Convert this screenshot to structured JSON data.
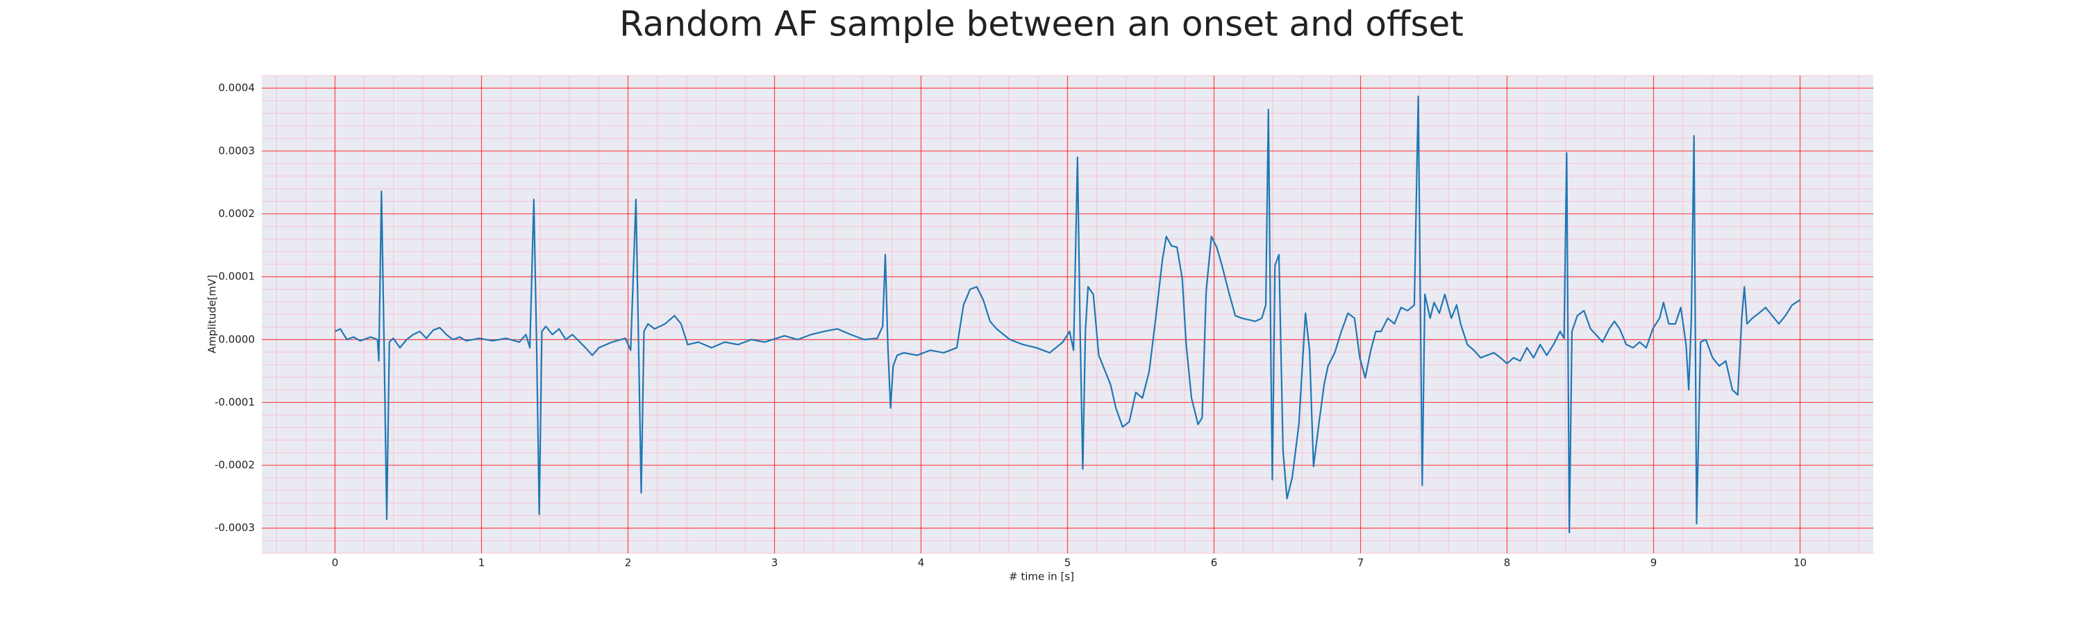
{
  "chart_data": {
    "type": "line",
    "title": "Random AF sample between an onset and offset",
    "xlabel": "# time in [s]",
    "ylabel": "Amplitude[mV]",
    "xlim": [
      -0.5,
      10.5
    ],
    "xticks": [
      0,
      1,
      2,
      3,
      4,
      5,
      6,
      7,
      8,
      9,
      10
    ],
    "ylim": [
      -0.00034,
      0.00042
    ],
    "yticks": [
      -0.0003,
      -0.0002,
      -0.0001,
      {
        "value": 0,
        "label": "0.0000"
      },
      0.0001,
      0.0002,
      0.0003,
      0.0004
    ],
    "grid": true,
    "grid_color": "#ff0000",
    "minor_grid_color": "#ffb0c8",
    "minor_divisions": 5,
    "background": "#eaeaf2",
    "series": [
      {
        "color": "#1f77b4",
        "x": [
          0,
          0.036,
          0.081,
          0.127,
          0.172,
          0.244,
          0.29,
          0.299,
          0.317,
          0.335,
          0.353,
          0.371,
          0.398,
          0.443,
          0.489,
          0.534,
          0.579,
          0.624,
          0.67,
          0.715,
          0.76,
          0.805,
          0.851,
          0.896,
          0.986,
          1.077,
          1.167,
          1.258,
          1.303,
          1.33,
          1.357,
          1.376,
          1.394,
          1.412,
          1.439,
          1.484,
          1.529,
          1.575,
          1.62,
          1.71,
          1.756,
          1.801,
          1.891,
          1.982,
          2.018,
          2.054,
          2.072,
          2.09,
          2.109,
          2.136,
          2.181,
          2.253,
          2.317,
          2.362,
          2.407,
          2.48,
          2.57,
          2.661,
          2.751,
          2.842,
          2.932,
          3.068,
          3.158,
          3.249,
          3.339,
          3.43,
          3.52,
          3.611,
          3.701,
          3.738,
          3.756,
          3.774,
          3.792,
          3.81,
          3.837,
          3.882,
          3.973,
          4.063,
          4.154,
          4.244,
          4.29,
          4.335,
          4.38,
          4.425,
          4.471,
          4.516,
          4.606,
          4.697,
          4.787,
          4.878,
          4.968,
          5.014,
          5.041,
          5.068,
          5.086,
          5.104,
          5.122,
          5.14,
          5.176,
          5.213,
          5.258,
          5.294,
          5.33,
          5.376,
          5.421,
          5.466,
          5.511,
          5.557,
          5.602,
          5.647,
          5.674,
          5.71,
          5.747,
          5.783,
          5.81,
          5.846,
          5.891,
          5.919,
          5.946,
          5.982,
          6.018,
          6.054,
          6.1,
          6.145,
          6.19,
          6.281,
          6.326,
          6.353,
          6.371,
          6.389,
          6.398,
          6.416,
          6.443,
          6.471,
          6.498,
          6.534,
          6.579,
          6.624,
          6.652,
          6.679,
          6.715,
          6.751,
          6.778,
          6.824,
          6.869,
          6.914,
          6.959,
          6.995,
          7.032,
          7.068,
          7.104,
          7.14,
          7.186,
          7.231,
          7.276,
          7.321,
          7.367,
          7.394,
          7.421,
          7.439,
          7.475,
          7.502,
          7.538,
          7.575,
          7.62,
          7.656,
          7.683,
          7.729,
          7.774,
          7.819,
          7.864,
          7.91,
          7.955,
          8.0,
          8.045,
          8.09,
          8.136,
          8.181,
          8.226,
          8.271,
          8.317,
          8.362,
          8.389,
          8.407,
          8.425,
          8.443,
          8.48,
          8.525,
          8.57,
          8.606,
          8.652,
          8.697,
          8.733,
          8.769,
          8.814,
          8.86,
          8.905,
          8.95,
          8.995,
          9.041,
          9.068,
          9.104,
          9.149,
          9.186,
          9.222,
          9.24,
          9.258,
          9.276,
          9.294,
          9.321,
          9.357,
          9.403,
          9.448,
          9.493,
          9.538,
          9.575,
          9.602,
          9.62,
          9.638,
          9.674,
          9.719,
          9.765,
          9.81,
          9.855,
          9.9,
          9.946,
          10.0
        ],
        "values": [
          1.3e-05,
          1.7e-05,
          0,
          4e-06,
          -2e-06,
          4e-06,
          0,
          -3.4e-05,
          0.000236,
          -8e-06,
          -0.000286,
          -4e-06,
          2e-06,
          -1.3e-05,
          0,
          8e-06,
          1.3e-05,
          2e-06,
          1.5e-05,
          1.9e-05,
          8e-06,
          0,
          4e-06,
          -2e-06,
          2e-06,
          -2e-06,
          2e-06,
          -4e-06,
          8e-06,
          -1.3e-05,
          0.000223,
          -8e-06,
          -0.000278,
          1.3e-05,
          2.1e-05,
          8e-06,
          1.7e-05,
          0,
          8e-06,
          -1.3e-05,
          -2.5e-05,
          -1.3e-05,
          -4e-06,
          2e-06,
          -1.7e-05,
          0.000223,
          -8e-06,
          -0.000244,
          1.3e-05,
          2.5e-05,
          1.7e-05,
          2.5e-05,
          3.8e-05,
          2.5e-05,
          -8e-06,
          -4e-06,
          -1.3e-05,
          -4e-06,
          -8e-06,
          0,
          -4e-06,
          6e-06,
          0,
          8e-06,
          1.3e-05,
          1.7e-05,
          8e-06,
          0,
          2e-06,
          2.1e-05,
          0.000135,
          -1.3e-05,
          -0.000109,
          -4.2e-05,
          -2.5e-05,
          -2.1e-05,
          -2.5e-05,
          -1.7e-05,
          -2.1e-05,
          -1.3e-05,
          5.5e-05,
          8e-05,
          8.4e-05,
          6.3e-05,
          2.9e-05,
          1.7e-05,
          0,
          -8e-06,
          -1.3e-05,
          -2.1e-05,
          -4e-06,
          1.3e-05,
          -1.7e-05,
          0.00029,
          1.3e-05,
          -0.000206,
          1.3e-05,
          8.4e-05,
          7.2e-05,
          -2.5e-05,
          -5.1e-05,
          -7.2e-05,
          -0.000109,
          -0.000139,
          -0.000131,
          -8.4e-05,
          -9.3e-05,
          -5.1e-05,
          3.4e-05,
          0.000126,
          0.000164,
          0.000149,
          0.000147,
          9.7e-05,
          -8e-06,
          -9.3e-05,
          -0.000135,
          -0.000124,
          7.6e-05,
          0.000164,
          0.000147,
          0.000118,
          7.6e-05,
          3.8e-05,
          3.4e-05,
          2.9e-05,
          3.4e-05,
          5.5e-05,
          0.000366,
          -5.1e-05,
          -0.000223,
          0.000118,
          0.000135,
          -0.000177,
          -0.000253,
          -0.000219,
          -0.000135,
          4.2e-05,
          -1.7e-05,
          -0.000202,
          -0.000135,
          -7.2e-05,
          -4.2e-05,
          -2.1e-05,
          1.3e-05,
          4.2e-05,
          3.4e-05,
          -2.9e-05,
          -6.1e-05,
          -1.9e-05,
          1.3e-05,
          1.3e-05,
          3.4e-05,
          2.5e-05,
          5.1e-05,
          4.6e-05,
          5.5e-05,
          0.000387,
          -0.000232,
          7.2e-05,
          3.4e-05,
          5.9e-05,
          4.2e-05,
          7.2e-05,
          3.4e-05,
          5.5e-05,
          2.5e-05,
          -8e-06,
          -1.7e-05,
          -2.9e-05,
          -2.5e-05,
          -2.1e-05,
          -2.9e-05,
          -3.8e-05,
          -2.9e-05,
          -3.4e-05,
          -1.3e-05,
          -2.9e-05,
          -8e-06,
          -2.5e-05,
          -8e-06,
          1.3e-05,
          2e-06,
          0.000297,
          -0.000307,
          1.3e-05,
          3.8e-05,
          4.6e-05,
          1.7e-05,
          8e-06,
          -4e-06,
          1.7e-05,
          2.9e-05,
          1.7e-05,
          -8e-06,
          -1.3e-05,
          -4e-06,
          -1.3e-05,
          1.7e-05,
          3.4e-05,
          5.9e-05,
          2.5e-05,
          2.5e-05,
          5.1e-05,
          -8e-06,
          -8e-05,
          3.4e-05,
          0.000324,
          -0.000293,
          -4e-06,
          0,
          -2.9e-05,
          -4.2e-05,
          -3.4e-05,
          -8e-05,
          -8.8e-05,
          3.4e-05,
          8.4e-05,
          2.5e-05,
          3.4e-05,
          4.2e-05,
          5.1e-05,
          3.8e-05,
          2.5e-05,
          3.8e-05,
          5.5e-05,
          6.3e-05
        ]
      }
    ]
  }
}
